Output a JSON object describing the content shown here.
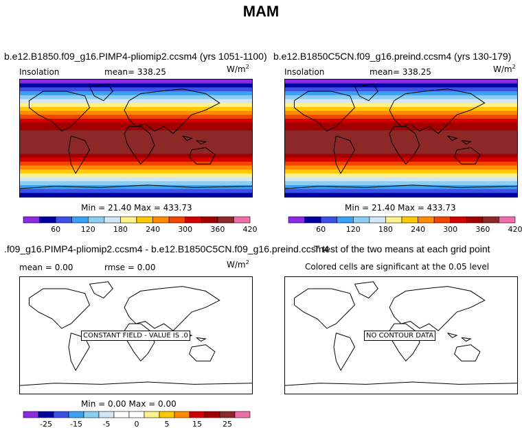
{
  "page": {
    "title": "MAM"
  },
  "colors": {
    "cmap": [
      "#8a2be2",
      "#0000a0",
      "#3c50e6",
      "#3ca0f0",
      "#8ccdf0",
      "#d2e6f5",
      "#fff28c",
      "#ffc800",
      "#ff8c00",
      "#f04600",
      "#d20000",
      "#a00000",
      "#8c2828",
      "#f06eaa"
    ],
    "contour": "#000000",
    "background": "#ffffff"
  },
  "chart_data": [
    {
      "type": "heatmap",
      "title": "b.e12.B1850.f09_g16.PIMP4-pliomip2.ccsm4 (yrs 1051-1100)",
      "variable": "Insolation",
      "mean_label": "mean=  338.25",
      "units": "W/m",
      "units_exp": "2",
      "minmax_label": "Min =  21.40 Max = 433.73",
      "min": 21.4,
      "max": 433.73,
      "field": "zonal",
      "colorbar": {
        "levels": [
          30,
          60,
          90,
          120,
          150,
          180,
          210,
          240,
          270,
          300,
          330,
          360,
          390,
          420,
          450
        ],
        "tick_labels": [
          "60",
          "120",
          "180",
          "240",
          "300",
          "360",
          "420"
        ]
      }
    },
    {
      "type": "heatmap",
      "title": "b.e12.B1850C5CN.f09_g16.preind.ccsm4 (yrs 130-179)",
      "variable": "Insolation",
      "mean_label": "mean=  338.25",
      "units": "W/m",
      "units_exp": "2",
      "minmax_label": "Min =  21.40 Max = 433.73",
      "min": 21.4,
      "max": 433.73,
      "field": "zonal"
    },
    {
      "type": "heatmap",
      "title": ".f09_g16.PIMP4-pliomip2.ccsm4 - b.e12.B1850C5CN.f09_g16.preind.ccsm4",
      "mean_label": "mean =    0.00",
      "rmse_label": "rmse =    0.00",
      "units": "W/m",
      "units_exp": "2",
      "minmax_label": "Min =    0.00 Max =    0.00",
      "min": 0.0,
      "max": 0.0,
      "field": "constant",
      "annotation": "CONSTANT FIELD - VALUE IS .0",
      "colorbar": {
        "tick_labels": [
          "-25",
          "-15",
          "-5",
          "0",
          "5",
          "15",
          "25"
        ]
      }
    },
    {
      "type": "heatmap",
      "title": "T test of the two means at each grid point",
      "subtitle": "Colored cells are significant at the 0.05 level",
      "field": "none",
      "annotation": "NO CONTOUR DATA"
    }
  ]
}
